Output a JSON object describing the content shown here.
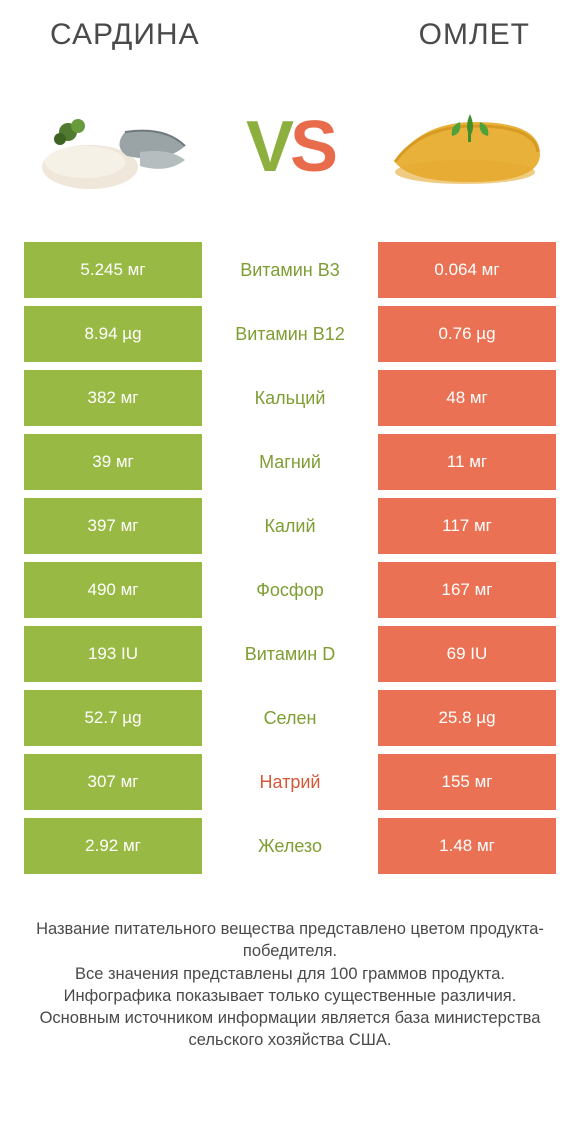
{
  "colors": {
    "left": "#98ba44",
    "right": "#ea7153",
    "label_left": "#7e9e33",
    "label_right": "#d4583a",
    "text": "#4a4a4a"
  },
  "header": {
    "left_title": "Сардина",
    "right_title": "Омлет"
  },
  "vs": {
    "v": "V",
    "s": "S"
  },
  "rows": [
    {
      "left": "5.245 мг",
      "label": "Витамин B3",
      "right": "0.064 мг",
      "winner": "left"
    },
    {
      "left": "8.94 µg",
      "label": "Витамин B12",
      "right": "0.76 µg",
      "winner": "left"
    },
    {
      "left": "382 мг",
      "label": "Кальций",
      "right": "48 мг",
      "winner": "left"
    },
    {
      "left": "39 мг",
      "label": "Магний",
      "right": "11 мг",
      "winner": "left"
    },
    {
      "left": "397 мг",
      "label": "Калий",
      "right": "117 мг",
      "winner": "left"
    },
    {
      "left": "490 мг",
      "label": "Фосфор",
      "right": "167 мг",
      "winner": "left"
    },
    {
      "left": "193 IU",
      "label": "Витамин D",
      "right": "69 IU",
      "winner": "left"
    },
    {
      "left": "52.7 µg",
      "label": "Селен",
      "right": "25.8 µg",
      "winner": "left"
    },
    {
      "left": "307 мг",
      "label": "Натрий",
      "right": "155 мг",
      "winner": "right"
    },
    {
      "left": "2.92 мг",
      "label": "Железо",
      "right": "1.48 мг",
      "winner": "left"
    }
  ],
  "footer": {
    "line1": "Название питательного вещества представлено цветом продукта-победителя.",
    "line2": "Все значения представлены для 100 граммов продукта.",
    "line3": "Инфографика показывает только существенные различия.",
    "line4": "Основным источником информации является база министерства сельского хозяйства США."
  }
}
